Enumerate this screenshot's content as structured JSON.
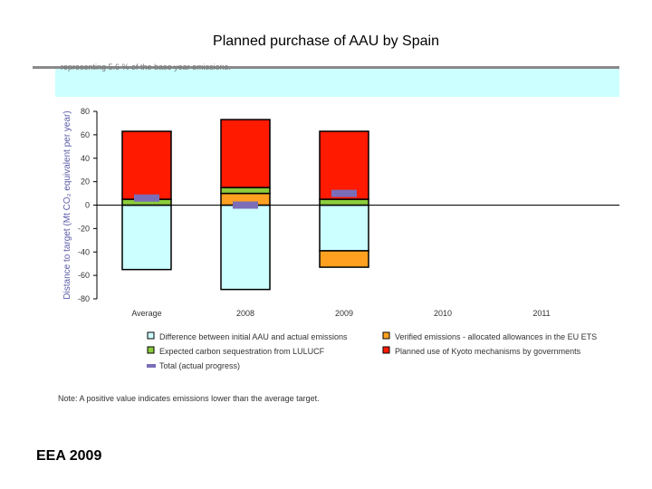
{
  "slide_title": "Planned purchase of AAU by Spain",
  "band_text": "representing 5.6 % of the base year emissions.",
  "source": "EEA 2009",
  "colors": {
    "red": "#ff1a00",
    "green": "#8ccc3c",
    "orange": "#ffa020",
    "cyan": "#ccffff",
    "purple": "#7b6db8",
    "band": "#ccffff"
  },
  "chart_data": {
    "type": "bar",
    "stacked": true,
    "title": "Planned purchase of AAU by Spain",
    "ylabel": "Distance to target (Mt CO₂ equivalent per year)",
    "xlabel": "",
    "ylim": [
      -80,
      80
    ],
    "yticks": [
      80,
      60,
      40,
      20,
      0,
      -20,
      -40,
      -60,
      -80
    ],
    "categories": [
      "Average",
      "2008",
      "2009",
      "2010",
      "2011"
    ],
    "series": [
      {
        "name": "Difference between initial AAU and actual emissions",
        "color": "#ccffff",
        "values": [
          -55,
          -72,
          -39,
          null,
          null
        ]
      },
      {
        "name": "Verified emissions - allocated allowances in the EU ETS",
        "color": "#ffa020",
        "values": [
          0,
          10,
          -14,
          null,
          null
        ]
      },
      {
        "name": "Expected carbon sequestration from LULUCF",
        "color": "#8ccc3c",
        "values": [
          5,
          5,
          5,
          null,
          null
        ]
      },
      {
        "name": "Planned use of Kyoto mechanisms by governments",
        "color": "#ff1a00",
        "values": [
          58,
          58,
          58,
          null,
          null
        ]
      },
      {
        "name": "Total (actual progress)",
        "color": "#7b6db8",
        "values": [
          6,
          0,
          10,
          null,
          null
        ]
      }
    ],
    "legend": [
      {
        "label": "Difference between initial AAU and actual emissions",
        "color": "#ccffff",
        "marker": "box"
      },
      {
        "label": "Verified emissions - allocated allowances in the EU ETS",
        "color": "#ffa020",
        "marker": "box"
      },
      {
        "label": "Expected carbon sequestration from LULUCF",
        "color": "#8ccc3c",
        "marker": "box"
      },
      {
        "label": "Planned use of Kyoto mechanisms by governments",
        "color": "#ff1a00",
        "marker": "box"
      },
      {
        "label": "Total (actual progress)",
        "color": "#7b6db8",
        "marker": "line"
      }
    ],
    "note": "Note: A positive value indicates emissions lower than the average target."
  }
}
